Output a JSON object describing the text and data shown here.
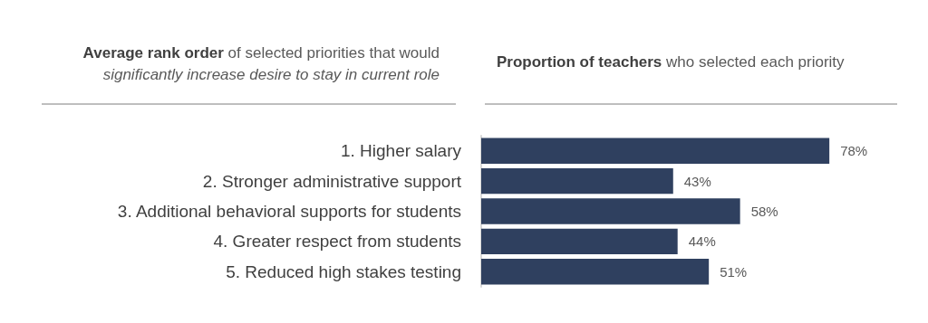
{
  "chart_data": {
    "type": "bar",
    "orientation": "horizontal",
    "title": "Proportion of teachers",
    "subtitle": "who selected each priority",
    "annotations": [
      "Average rank order",
      "of selected priorities that would",
      "significantly increase desire to stay in current role"
    ],
    "categories": [
      "1. Higher salary",
      "2. Stronger administrative support",
      "3. Additional behavioral supports for students",
      "4. Greater respect from students",
      "5. Reduced high stakes testing"
    ],
    "values": [
      78,
      43,
      58,
      44,
      51
    ],
    "value_labels": [
      "78%",
      "43%",
      "58%",
      "44%",
      "51%"
    ],
    "color": "#2f405f"
  }
}
